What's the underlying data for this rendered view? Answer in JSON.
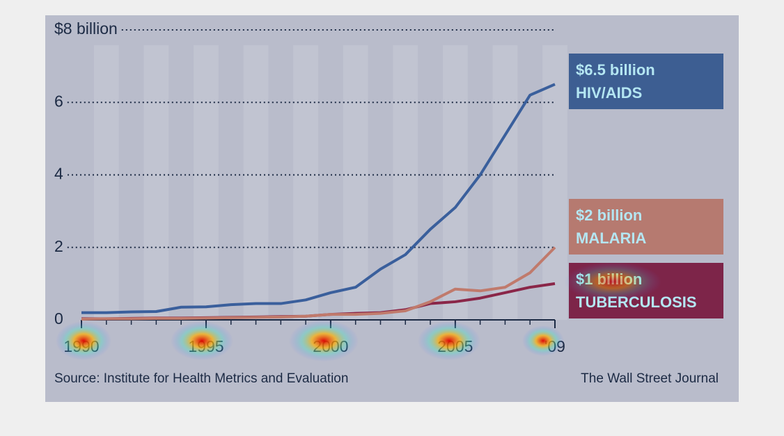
{
  "chart_data": {
    "type": "line",
    "x": [
      1990,
      1991,
      1992,
      1993,
      1994,
      1995,
      1996,
      1997,
      1998,
      1999,
      2000,
      2001,
      2002,
      2003,
      2004,
      2005,
      2006,
      2007,
      2008,
      2009
    ],
    "xlim": [
      1990,
      2009
    ],
    "xticks": [
      1990,
      1995,
      2000,
      2005,
      {
        "value": 2009,
        "label": "'09"
      }
    ],
    "ylim": [
      0,
      8
    ],
    "yticks": [
      0,
      2,
      4,
      6,
      {
        "value": 8,
        "label": "$8 billion"
      }
    ],
    "grid": true,
    "series": [
      {
        "name": "HIV/AIDS",
        "end_label": "$6.5 billion",
        "color": "#3a5f9c",
        "box_color": "#3d5e92",
        "values": [
          0.2,
          0.2,
          0.22,
          0.23,
          0.35,
          0.36,
          0.42,
          0.45,
          0.45,
          0.55,
          0.75,
          0.9,
          1.4,
          1.8,
          2.5,
          3.1,
          4.0,
          5.1,
          6.2,
          6.5
        ]
      },
      {
        "name": "MALARIA",
        "end_label": "$2 billion",
        "color": "#c07a6c",
        "box_color": "#b67a70",
        "values": [
          0.02,
          0.03,
          0.03,
          0.04,
          0.04,
          0.05,
          0.06,
          0.07,
          0.08,
          0.1,
          0.15,
          0.15,
          0.18,
          0.25,
          0.5,
          0.85,
          0.8,
          0.9,
          1.3,
          2.0
        ]
      },
      {
        "name": "TUBERCULOSIS",
        "end_label": "$1 billion",
        "color": "#8a2648",
        "box_color": "#7d2549",
        "values": [
          0.03,
          0.03,
          0.04,
          0.05,
          0.05,
          0.06,
          0.07,
          0.08,
          0.09,
          0.1,
          0.15,
          0.18,
          0.2,
          0.28,
          0.45,
          0.5,
          0.6,
          0.75,
          0.9,
          1.0
        ]
      }
    ],
    "source": "Source: Institute for Health Metrics and Evaluation",
    "credit": "The Wall Street Journal"
  }
}
